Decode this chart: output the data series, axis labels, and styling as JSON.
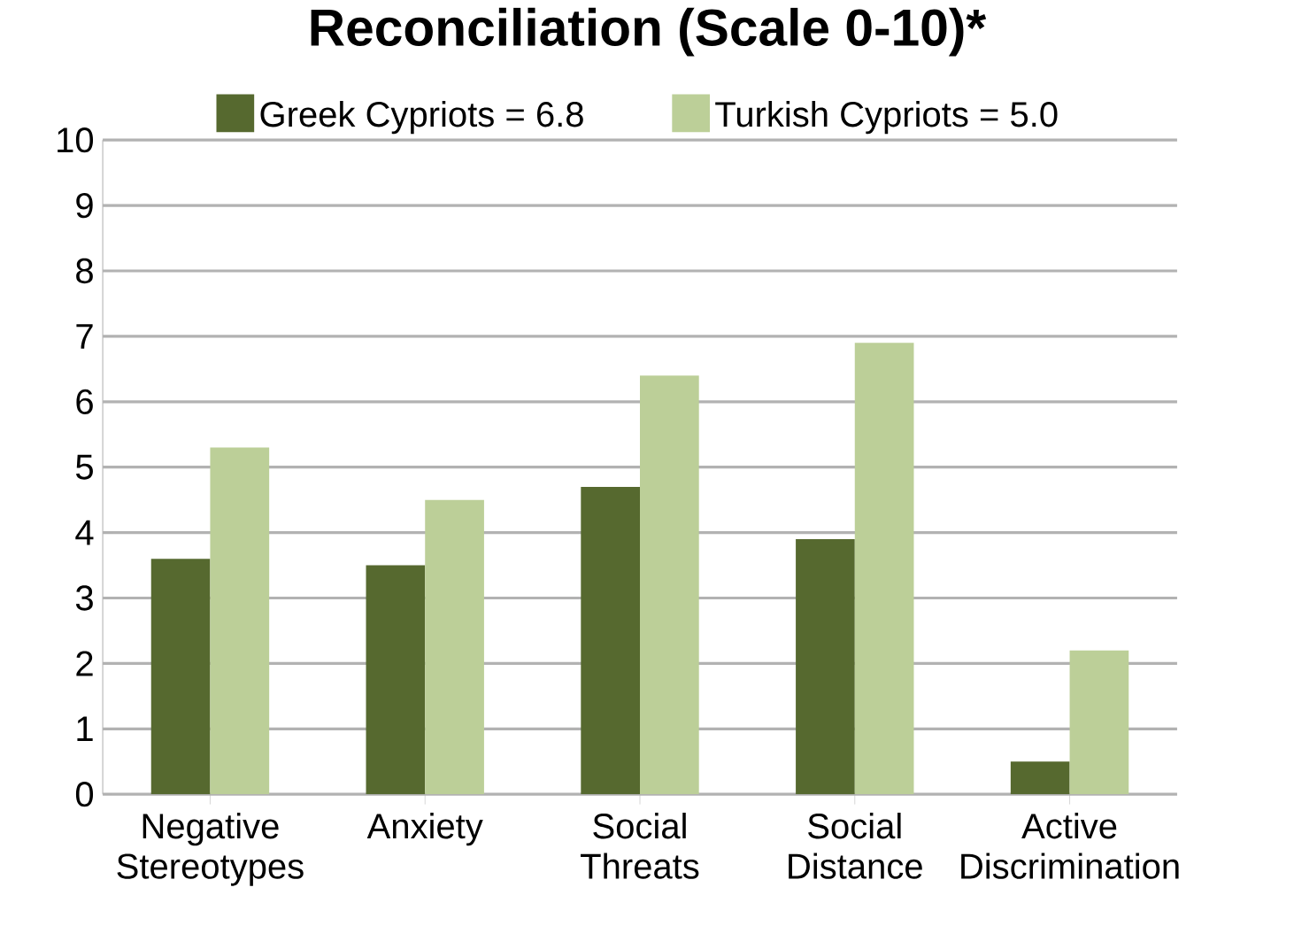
{
  "chart_data": {
    "type": "bar",
    "title": "Reconciliation (Scale 0-10)*",
    "categories": [
      "Negative Stereotypes",
      "Anxiety",
      "Social Threats",
      "Social Distance",
      "Active Discrimination"
    ],
    "series": [
      {
        "name": "Greek Cypriots = 6.8",
        "color": "#56692f",
        "values": [
          3.6,
          3.5,
          4.7,
          3.9,
          0.5
        ]
      },
      {
        "name": "Turkish Cypriots = 5.0",
        "color": "#bccf98",
        "values": [
          5.3,
          4.5,
          6.4,
          6.9,
          2.2
        ]
      }
    ],
    "ylim": [
      0,
      10
    ],
    "yticks": [
      0,
      1,
      2,
      3,
      4,
      5,
      6,
      7,
      8,
      9,
      10
    ],
    "grid": "y",
    "legend": "top"
  }
}
